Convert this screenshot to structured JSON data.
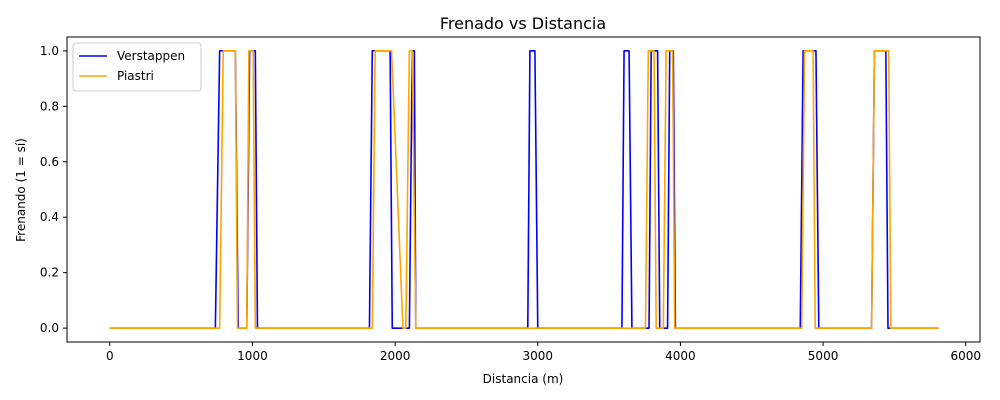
{
  "chart_data": {
    "type": "line",
    "title": "Frenado vs Distancia",
    "xlabel": "Distancia (m)",
    "ylabel": "Frenando (1 = sí)",
    "xlim": [
      -300,
      6100
    ],
    "ylim": [
      -0.05,
      1.05
    ],
    "xticks": [
      0,
      1000,
      2000,
      3000,
      4000,
      5000,
      6000
    ],
    "xtick_labels": [
      "0",
      "1000",
      "2000",
      "3000",
      "4000",
      "5000",
      "6000"
    ],
    "yticks": [
      0.0,
      0.2,
      0.4,
      0.6,
      0.8,
      1.0
    ],
    "ytick_labels": [
      "0.0",
      "0.2",
      "0.4",
      "0.6",
      "0.8",
      "1.0"
    ],
    "grid": false,
    "legend_position": "top-left",
    "series": [
      {
        "name": "Verstappen",
        "color": "#0000ff",
        "x": [
          0,
          740,
          770,
          880,
          900,
          960,
          980,
          1020,
          1035,
          1820,
          1840,
          1965,
          1980,
          2100,
          2120,
          2135,
          2145,
          2930,
          2945,
          2980,
          3000,
          3590,
          3605,
          3640,
          3660,
          3780,
          3795,
          3840,
          3855,
          3910,
          3925,
          3950,
          3965,
          4840,
          4860,
          4950,
          4970,
          5340,
          5360,
          5440,
          5455,
          5810
        ],
        "values": [
          0,
          0,
          1,
          1,
          0,
          0,
          1,
          1,
          0,
          0,
          1,
          1,
          0,
          0,
          1,
          1,
          0,
          0,
          1,
          1,
          0,
          0,
          1,
          1,
          0,
          0,
          1,
          1,
          0,
          0,
          1,
          1,
          0,
          0,
          1,
          1,
          0,
          0,
          1,
          1,
          0,
          0
        ]
      },
      {
        "name": "Piastri",
        "color": "#ffa500",
        "x": [
          0,
          770,
          795,
          880,
          895,
          960,
          975,
          1005,
          1020,
          1840,
          1860,
          1960,
          1975,
          2055,
          2075,
          2100,
          2120,
          2145,
          2160,
          3755,
          3775,
          3815,
          3830,
          3865,
          3880,
          3900,
          3915,
          3945,
          3960,
          4850,
          4870,
          4930,
          4945,
          5340,
          5360,
          5460,
          5475,
          5810
        ],
        "values": [
          0,
          0,
          1,
          1,
          0,
          0,
          1,
          1,
          0,
          0,
          1,
          1,
          1,
          0,
          0,
          1,
          1,
          0,
          0,
          0,
          1,
          1,
          0,
          0,
          0,
          1,
          1,
          1,
          0,
          0,
          1,
          1,
          0,
          0,
          1,
          1,
          0,
          0
        ]
      }
    ]
  }
}
